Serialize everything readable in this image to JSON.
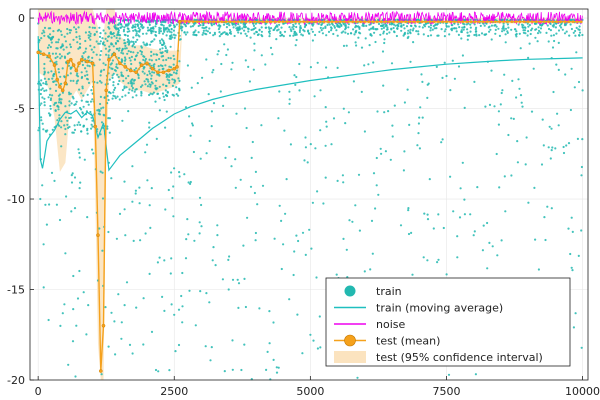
{
  "chart_data": {
    "type": "scatter",
    "title": "",
    "xlabel": "",
    "ylabel": "",
    "xlim": [
      -150,
      10100
    ],
    "ylim": [
      -20,
      0.5
    ],
    "grid": true,
    "legend_position": "bottom-right",
    "x_ticks": [
      {
        "value": 0,
        "label": "0"
      },
      {
        "value": 2500,
        "label": "2500"
      },
      {
        "value": 5000,
        "label": "5000"
      },
      {
        "value": 7500,
        "label": "7500"
      },
      {
        "value": 10000,
        "label": "10000"
      }
    ],
    "y_ticks": [
      {
        "value": 0,
        "label": "0"
      },
      {
        "value": -5,
        "label": "-5"
      },
      {
        "value": -10,
        "label": "-10"
      },
      {
        "value": -15,
        "label": "-15"
      },
      {
        "value": -20,
        "label": "-20"
      }
    ],
    "colors": {
      "train": "#22b8b0",
      "train_avg": "#1fbfbf",
      "noise": "#ee00ee",
      "test": "#f5a11c",
      "test_ci": "#fbe3bf"
    },
    "series": [
      {
        "name": "train",
        "kind": "scatter",
        "description_points": [
          [
            0,
            -0.3
          ],
          [
            50,
            -7.8
          ],
          [
            100,
            -12.5
          ],
          [
            150,
            -4.0
          ],
          [
            200,
            -1.5
          ],
          [
            300,
            -9.0
          ],
          [
            400,
            -2.0
          ],
          [
            500,
            -13.0
          ],
          [
            600,
            -5.5
          ],
          [
            700,
            -17.0
          ],
          [
            800,
            -3.0
          ],
          [
            900,
            -11.0
          ],
          [
            1000,
            -6.0
          ],
          [
            1100,
            -14.5
          ],
          [
            1200,
            -2.5
          ],
          [
            1300,
            -8.0
          ],
          [
            1400,
            -1.0
          ],
          [
            1500,
            -4.5
          ],
          [
            1600,
            -12.0
          ],
          [
            1700,
            -3.5
          ],
          [
            1800,
            -16.0
          ],
          [
            1900,
            -2.0
          ],
          [
            2000,
            -7.0
          ],
          [
            2100,
            -4.2
          ],
          [
            2200,
            -13.5
          ],
          [
            2300,
            -2.8
          ],
          [
            2400,
            -9.5
          ],
          [
            2600,
            -1.2
          ],
          [
            2800,
            -6.5
          ],
          [
            3000,
            -11.5
          ],
          [
            3200,
            -3.0
          ],
          [
            3500,
            -15.0
          ],
          [
            3800,
            -5.0
          ],
          [
            4000,
            -8.5
          ],
          [
            4300,
            -2.0
          ],
          [
            4500,
            -12.5
          ],
          [
            4800,
            -4.0
          ],
          [
            5000,
            -17.5
          ],
          [
            5300,
            -6.0
          ],
          [
            5500,
            -9.0
          ],
          [
            5800,
            -3.5
          ],
          [
            6000,
            -14.0
          ],
          [
            6300,
            -7.5
          ],
          [
            6500,
            -2.5
          ],
          [
            6800,
            -10.5
          ],
          [
            7000,
            -5.5
          ],
          [
            7300,
            -16.5
          ],
          [
            7500,
            -3.2
          ],
          [
            7800,
            -8.0
          ],
          [
            8000,
            -12.0
          ],
          [
            8300,
            -4.8
          ],
          [
            8500,
            -18.5
          ],
          [
            8800,
            -6.8
          ],
          [
            9000,
            -2.2
          ],
          [
            9300,
            -11.0
          ],
          [
            9500,
            -7.2
          ],
          [
            9800,
            -13.8
          ],
          [
            10000,
            -4.0
          ]
        ]
      },
      {
        "name": "train (moving average)",
        "kind": "line",
        "x": [
          0,
          40,
          80,
          120,
          160,
          200,
          300,
          400,
          500,
          600,
          700,
          800,
          900,
          1000,
          1100,
          1200,
          1300,
          1400,
          1500,
          1700,
          1900,
          2100,
          2300,
          2500,
          2800,
          3200,
          3600,
          4000,
          4500,
          5000,
          5500,
          6000,
          6500,
          7000,
          7500,
          8000,
          8500,
          9000,
          9500,
          10000
        ],
        "values": [
          -1.0,
          -7.8,
          -8.3,
          -7.6,
          -6.8,
          -6.6,
          -6.2,
          -5.6,
          -5.2,
          -5.3,
          -5.1,
          -5.5,
          -5.2,
          -5.4,
          -6.6,
          -5.8,
          -8.4,
          -8.0,
          -7.6,
          -7.1,
          -6.6,
          -6.1,
          -5.7,
          -5.3,
          -4.9,
          -4.5,
          -4.2,
          -3.95,
          -3.7,
          -3.45,
          -3.25,
          -3.05,
          -2.85,
          -2.7,
          -2.55,
          -2.45,
          -2.35,
          -2.28,
          -2.24,
          -2.2
        ]
      },
      {
        "name": "noise",
        "kind": "line",
        "x_start": 0,
        "x_end": 10000,
        "mean": 0.0,
        "amplitude": 0.35
      },
      {
        "name": "test (mean)",
        "kind": "line-marker",
        "x": [
          0,
          100,
          200,
          300,
          350,
          400,
          450,
          500,
          550,
          600,
          650,
          700,
          750,
          800,
          900,
          1000,
          1050,
          1100,
          1150,
          1200,
          1250,
          1300,
          1400,
          1500,
          1600,
          1700,
          1800,
          1900,
          2000,
          2100,
          2200,
          2300,
          2400,
          2500,
          2550,
          2600,
          2650,
          3000,
          3500,
          4000,
          5000,
          6000,
          7000,
          8000,
          9000,
          10000
        ],
        "values": [
          -1.9,
          -2.0,
          -2.1,
          -2.6,
          -3.4,
          -3.8,
          -4.0,
          -3.6,
          -2.4,
          -2.3,
          -2.6,
          -2.9,
          -2.5,
          -2.3,
          -2.4,
          -2.5,
          -6.0,
          -12.0,
          -19.5,
          -17.0,
          -4.0,
          -2.3,
          -2.0,
          -2.5,
          -2.7,
          -2.9,
          -3.0,
          -2.6,
          -2.5,
          -2.8,
          -3.0,
          -3.0,
          -2.9,
          -2.8,
          -2.7,
          -0.2,
          -0.15,
          -0.2,
          -0.2,
          -0.2,
          -0.2,
          -0.2,
          -0.2,
          -0.2,
          -0.2,
          -0.2
        ]
      },
      {
        "name": "test (95% confidence interval)",
        "kind": "band",
        "x": [
          0,
          100,
          200,
          300,
          400,
          500,
          600,
          700,
          800,
          900,
          1000,
          1050,
          1100,
          1150,
          1200,
          1250,
          1300,
          1400,
          1500,
          1700,
          1900,
          2100,
          2300,
          2500,
          2600,
          2650,
          10000
        ],
        "lower": [
          -3.0,
          -3.2,
          -4.0,
          -5.5,
          -8.5,
          -8.0,
          -4.5,
          -4.0,
          -4.5,
          -4.0,
          -3.5,
          -10.0,
          -18.0,
          -20.0,
          -20.0,
          -8.0,
          -3.5,
          -3.0,
          -3.5,
          -4.0,
          -4.0,
          -4.2,
          -4.0,
          -3.8,
          -3.6,
          -0.3,
          -0.3
        ],
        "upper": [
          0.5,
          0.5,
          0.5,
          0.5,
          0.5,
          0.5,
          0.5,
          0.5,
          0.5,
          0.5,
          0.5,
          0.0,
          -0.5,
          -2.5,
          -1.0,
          0.5,
          0.5,
          0.5,
          -1.0,
          -1.5,
          -1.5,
          -1.7,
          -1.8,
          -1.8,
          -1.8,
          0.0,
          0.0
        ]
      }
    ],
    "legend": [
      {
        "label": "train",
        "symbol": "marker",
        "color_key": "train"
      },
      {
        "label": "train (moving average)",
        "symbol": "line",
        "color_key": "train_avg"
      },
      {
        "label": "noise",
        "symbol": "line",
        "color_key": "noise"
      },
      {
        "label": "test (mean)",
        "symbol": "line-marker",
        "color_key": "test"
      },
      {
        "label": "test (95% confidence interval)",
        "symbol": "band",
        "color_key": "test_ci"
      }
    ]
  }
}
